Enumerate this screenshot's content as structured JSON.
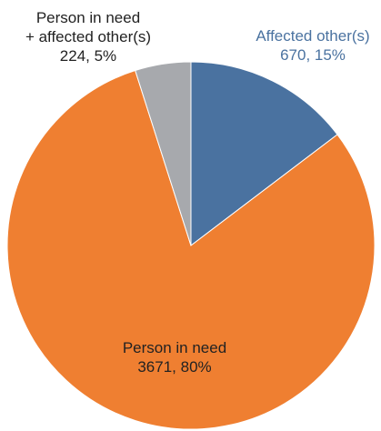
{
  "chart_data": {
    "type": "pie",
    "title": "",
    "legend": "none",
    "start_angle_deg": 0,
    "direction": "clockwise",
    "slices": [
      {
        "name": "Affected other(s)",
        "value": 670,
        "percent_label": "15%",
        "color": "#4a72a0",
        "label_lines": [
          "Affected other(s)",
          "670, 15%"
        ],
        "label_color": "#4a72a0"
      },
      {
        "name": "Person in need",
        "value": 3671,
        "percent_label": "80%",
        "color": "#ef7f31",
        "label_lines": [
          "Person in need",
          "3671, 80%"
        ],
        "label_color": "#222222"
      },
      {
        "name": "Person in need + affected other(s)",
        "value": 224,
        "percent_label": "5%",
        "color": "#a7a9ad",
        "label_lines": [
          "Person in need",
          "+ affected other(s)",
          "224, 5%"
        ],
        "label_color": "#222222"
      }
    ]
  }
}
